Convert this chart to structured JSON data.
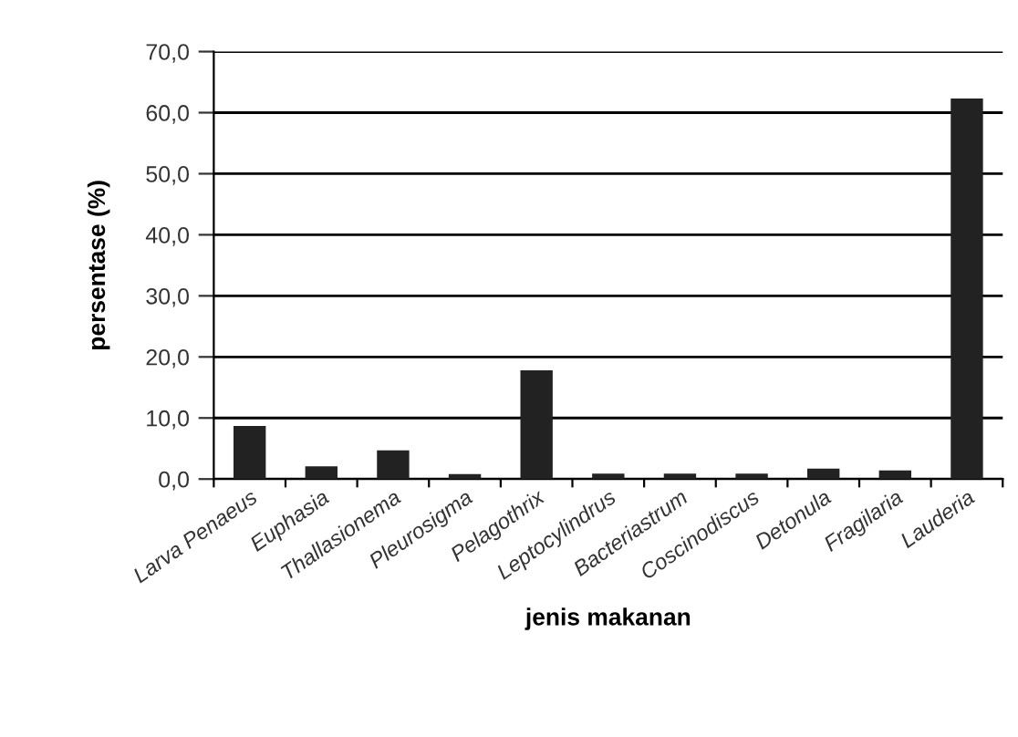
{
  "chart_data": {
    "type": "bar",
    "xlabel": "jenis makanan",
    "ylabel": "persentase (%)",
    "categories": [
      "Larva Penaeus",
      "Euphasia",
      "Thallasionema",
      "Pleurosigma",
      "Pelagothrix",
      "Leptocylindrus",
      "Bacteriastrum",
      "Coscinodiscus",
      "Detonula",
      "Fragilaria",
      "Lauderia"
    ],
    "values": [
      8.7,
      2.1,
      4.7,
      0.8,
      17.8,
      0.9,
      0.9,
      0.9,
      1.7,
      1.4,
      62.3
    ],
    "color": "#222222",
    "ylim": [
      0,
      70
    ],
    "yticks": [
      {
        "value": 0,
        "label": "0,0"
      },
      {
        "value": 10,
        "label": "10,0"
      },
      {
        "value": 20,
        "label": "20,0"
      },
      {
        "value": 30,
        "label": "30,0"
      },
      {
        "value": 40,
        "label": "40,0"
      },
      {
        "value": 50,
        "label": "50,0"
      },
      {
        "value": 60,
        "label": "60,0"
      },
      {
        "value": 70,
        "label": "70,0"
      }
    ],
    "grid": "y",
    "legend": false
  }
}
